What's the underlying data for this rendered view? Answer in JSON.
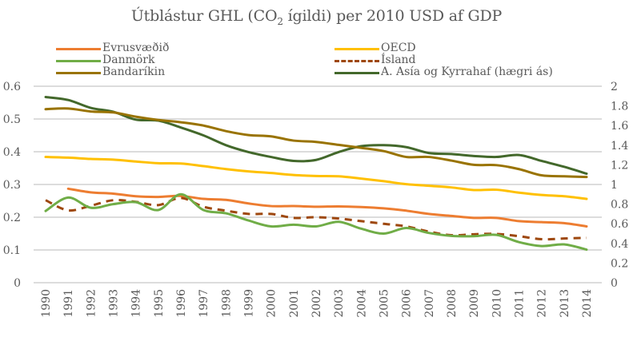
{
  "chart_data": {
    "type": "line",
    "title": "Útblástur GHL (CO₂ ígildi) per 2010 USD af GDP",
    "title_parts": {
      "before": "Útblástur GHL (CO",
      "sub": "2",
      "after": " ígildi) per 2010 USD af GDP"
    },
    "xlabel": "",
    "ylabel": "",
    "x": [
      "1990",
      "1991",
      "1992",
      "1993",
      "1994",
      "1995",
      "1996",
      "1997",
      "1998",
      "1999",
      "2000",
      "2001",
      "2002",
      "2003",
      "2004",
      "2005",
      "2006",
      "2007",
      "2008",
      "2009",
      "2010",
      "2011",
      "2012",
      "2013",
      "2014"
    ],
    "ylim_left": [
      0,
      0.6
    ],
    "yticks_left": [
      "0",
      "0.1",
      "0.2",
      "0.3",
      "0.4",
      "0.5",
      "0.6"
    ],
    "ylim_right": [
      0,
      2
    ],
    "yticks_right": [
      "0",
      "0.2",
      "0.4",
      "0.6",
      "0.8",
      "1",
      "1.2",
      "1.4",
      "1.6",
      "1.8",
      "2"
    ],
    "grid": true,
    "legend_position": "top",
    "series": [
      {
        "name": "Evrusvæðið",
        "axis": "left",
        "color": "#ED7D31",
        "dash": false,
        "values": [
          null,
          0.287,
          0.276,
          0.272,
          0.264,
          0.262,
          0.265,
          0.256,
          0.253,
          0.242,
          0.234,
          0.234,
          0.232,
          0.233,
          0.231,
          0.227,
          0.22,
          0.21,
          0.204,
          0.198,
          0.198,
          0.188,
          0.185,
          0.182,
          0.172
        ]
      },
      {
        "name": "OECD",
        "axis": "left",
        "color": "#FFC000",
        "dash": false,
        "values": [
          0.384,
          0.382,
          0.378,
          0.376,
          0.37,
          0.365,
          0.364,
          0.356,
          0.347,
          0.34,
          0.335,
          0.329,
          0.326,
          0.325,
          0.318,
          0.31,
          0.301,
          0.296,
          0.291,
          0.283,
          0.284,
          0.275,
          0.268,
          0.264,
          0.256
        ]
      },
      {
        "name": "Danmörk",
        "axis": "left",
        "color": "#70AD47",
        "dash": false,
        "values": [
          0.219,
          0.26,
          0.229,
          0.24,
          0.246,
          0.222,
          0.27,
          0.222,
          0.212,
          0.19,
          0.172,
          0.177,
          0.172,
          0.186,
          0.165,
          0.15,
          0.167,
          0.152,
          0.143,
          0.142,
          0.146,
          0.124,
          0.112,
          0.117,
          0.101
        ]
      },
      {
        "name": "Ísland",
        "axis": "left",
        "color": "#9E480E",
        "dash": true,
        "values": [
          0.252,
          0.221,
          0.235,
          0.252,
          0.247,
          0.237,
          0.259,
          0.232,
          0.22,
          0.21,
          0.21,
          0.198,
          0.2,
          0.196,
          0.188,
          0.18,
          0.172,
          0.156,
          0.145,
          0.148,
          0.149,
          0.142,
          0.133,
          0.135,
          0.137
        ]
      },
      {
        "name": "Bandaríkin",
        "axis": "left",
        "color": "#997300",
        "dash": false,
        "values": [
          0.53,
          0.532,
          0.523,
          0.52,
          0.507,
          0.497,
          0.49,
          0.48,
          0.463,
          0.451,
          0.447,
          0.434,
          0.43,
          0.421,
          0.412,
          0.402,
          0.384,
          0.384,
          0.373,
          0.36,
          0.359,
          0.347,
          0.328,
          0.325,
          0.323
        ]
      },
      {
        "name": "A. Asía og Kyrrahaf (hægri ás)",
        "axis": "right",
        "color": "#43682B",
        "dash": false,
        "values": [
          1.89,
          1.86,
          1.78,
          1.74,
          1.66,
          1.65,
          1.58,
          1.5,
          1.4,
          1.33,
          1.28,
          1.24,
          1.25,
          1.33,
          1.39,
          1.4,
          1.38,
          1.32,
          1.31,
          1.29,
          1.28,
          1.3,
          1.24,
          1.18,
          1.11
        ]
      }
    ]
  },
  "legend": [
    {
      "label": "Evrusvæðið",
      "series": 0
    },
    {
      "label": "OECD",
      "series": 1
    },
    {
      "label": "Danmörk",
      "series": 2
    },
    {
      "label": "Ísland",
      "series": 3
    },
    {
      "label": "Bandaríkin",
      "series": 4
    },
    {
      "label": "A. Asía og Kyrrahaf (hægri ás)",
      "series": 5
    }
  ],
  "colors": {
    "grid": "#D0D0D0",
    "text": "#595959"
  }
}
